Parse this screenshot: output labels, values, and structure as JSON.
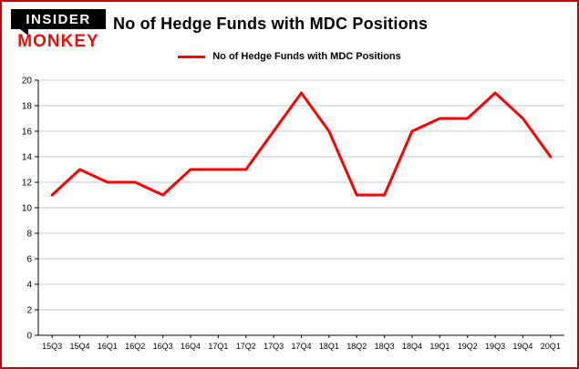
{
  "logo": {
    "line1": "INSIDER",
    "line2": "MONKEY"
  },
  "title": "No of Hedge Funds with MDC Positions",
  "legend": {
    "label": "No of Hedge Funds with MDC Positions",
    "color": "#ff0000"
  },
  "chart_data": {
    "type": "line",
    "title": "No of Hedge Funds with MDC Positions",
    "categories": [
      "15Q3",
      "15Q4",
      "16Q1",
      "16Q2",
      "16Q3",
      "16Q4",
      "17Q1",
      "17Q2",
      "17Q3",
      "17Q4",
      "18Q1",
      "18Q2",
      "18Q3",
      "18Q4",
      "19Q1",
      "19Q2",
      "19Q3",
      "19Q4",
      "20Q1"
    ],
    "values": [
      11,
      13,
      12,
      12,
      11,
      13,
      13,
      13,
      16,
      19,
      16,
      11,
      11,
      16,
      17,
      17,
      19,
      17,
      14
    ],
    "xlabel": "",
    "ylabel": "",
    "ylim": [
      0,
      20
    ],
    "ytick_step": 2,
    "grid": true,
    "legend_position": "top",
    "line_color": "#ff0000",
    "grid_color": "#c6c6c6",
    "axis_color": "#000000"
  }
}
